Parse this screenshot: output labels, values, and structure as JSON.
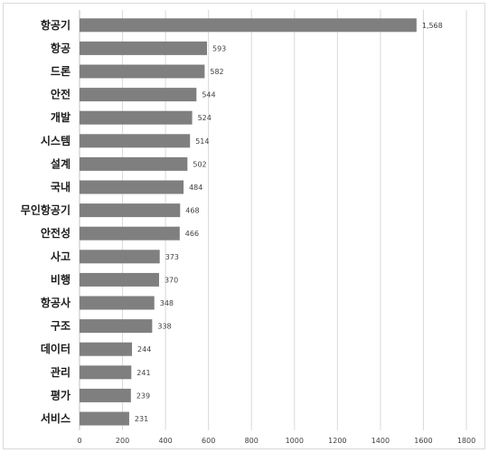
{
  "chart_data": {
    "type": "bar",
    "orientation": "horizontal",
    "categories": [
      "항공기",
      "항공",
      "드론",
      "안전",
      "개발",
      "시스템",
      "설계",
      "국내",
      "무인항공기",
      "안전성",
      "사고",
      "비행",
      "항공사",
      "구조",
      "데이터",
      "관리",
      "평가",
      "서비스"
    ],
    "values": [
      1568,
      593,
      582,
      544,
      524,
      514,
      502,
      484,
      468,
      466,
      373,
      370,
      348,
      338,
      244,
      241,
      239,
      231
    ],
    "value_labels": [
      "1,568",
      "593",
      "582",
      "544",
      "524",
      "514",
      "502",
      "484",
      "468",
      "466",
      "373",
      "370",
      "348",
      "338",
      "244",
      "241",
      "239",
      "231"
    ],
    "x_ticks": [
      "0",
      "200",
      "400",
      "600",
      "800",
      "1000",
      "1200",
      "1400",
      "1600",
      "1800"
    ],
    "xlim": [
      0,
      1800
    ],
    "title": "",
    "xlabel": "",
    "ylabel": "",
    "grid": true,
    "legend": "none",
    "colors": {
      "bar": "#7f7f7f",
      "grid": "#d9d9d9",
      "text": "#1a1a1a"
    }
  }
}
